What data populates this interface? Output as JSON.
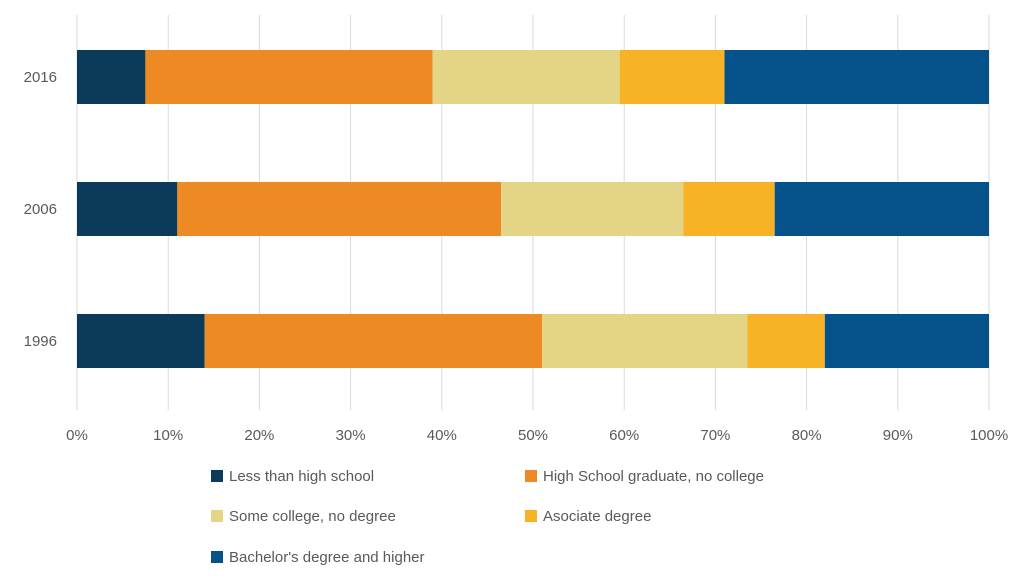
{
  "chart_data": {
    "type": "bar",
    "orientation": "horizontal",
    "stacked": "percent",
    "title": "",
    "xlabel": "",
    "ylabel": "",
    "categories": [
      "2016",
      "2006",
      "1996"
    ],
    "xlim": [
      0,
      100
    ],
    "x_ticks": [
      "0%",
      "10%",
      "20%",
      "30%",
      "40%",
      "50%",
      "60%",
      "70%",
      "80%",
      "90%",
      "100%"
    ],
    "grid": true,
    "legend_position": "bottom",
    "series": [
      {
        "name": "Less than high school",
        "color": "#0b3a5b",
        "values": [
          7.5,
          11,
          14
        ]
      },
      {
        "name": "High School graduate, no college",
        "color": "#ee8a24",
        "values": [
          31.5,
          35.5,
          37
        ]
      },
      {
        "name": "Some college, no degree",
        "color": "#e4d486",
        "values": [
          20.5,
          20,
          22.5
        ]
      },
      {
        "name": "Asociate degree",
        "color": "#f8b226",
        "values": [
          11.5,
          10,
          8.5
        ]
      },
      {
        "name": "Bachelor's degree and higher",
        "color": "#045289",
        "values": [
          29,
          23.5,
          18
        ]
      }
    ]
  }
}
